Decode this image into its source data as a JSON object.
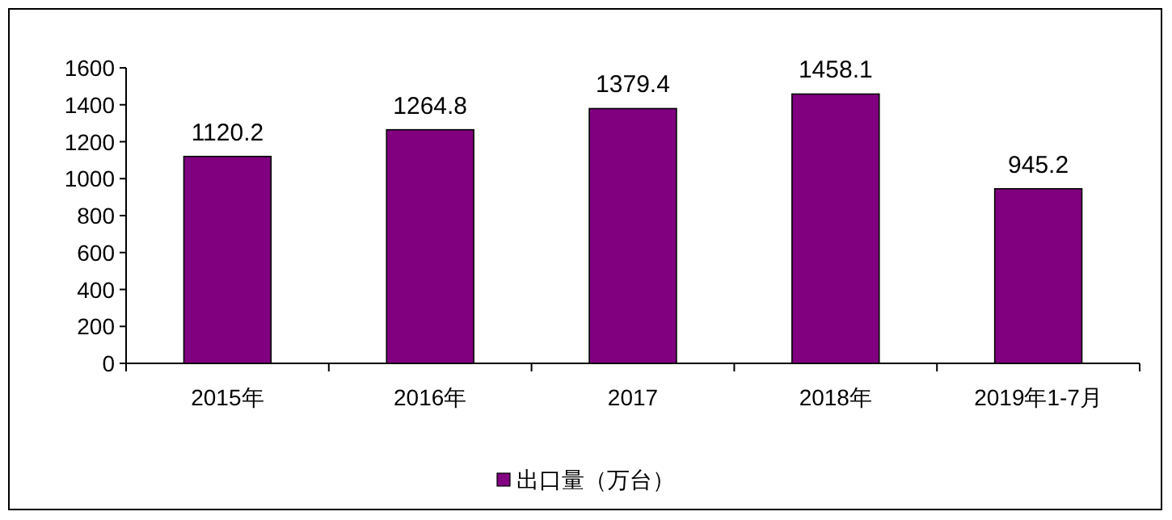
{
  "chart_data": {
    "type": "bar",
    "categories": [
      "2015年",
      "2016年",
      "2017",
      "2018年",
      "2019年1-7月"
    ],
    "series": [
      {
        "name": "出口量（万台）",
        "color": "#800080",
        "values": [
          1120.2,
          1264.8,
          1379.4,
          1458.1,
          945.2
        ]
      }
    ],
    "ylim": [
      0,
      1600
    ],
    "yticks": [
      0,
      200,
      400,
      600,
      800,
      1000,
      1200,
      1400,
      1600
    ],
    "data_labels": true,
    "legend": "bottom"
  }
}
